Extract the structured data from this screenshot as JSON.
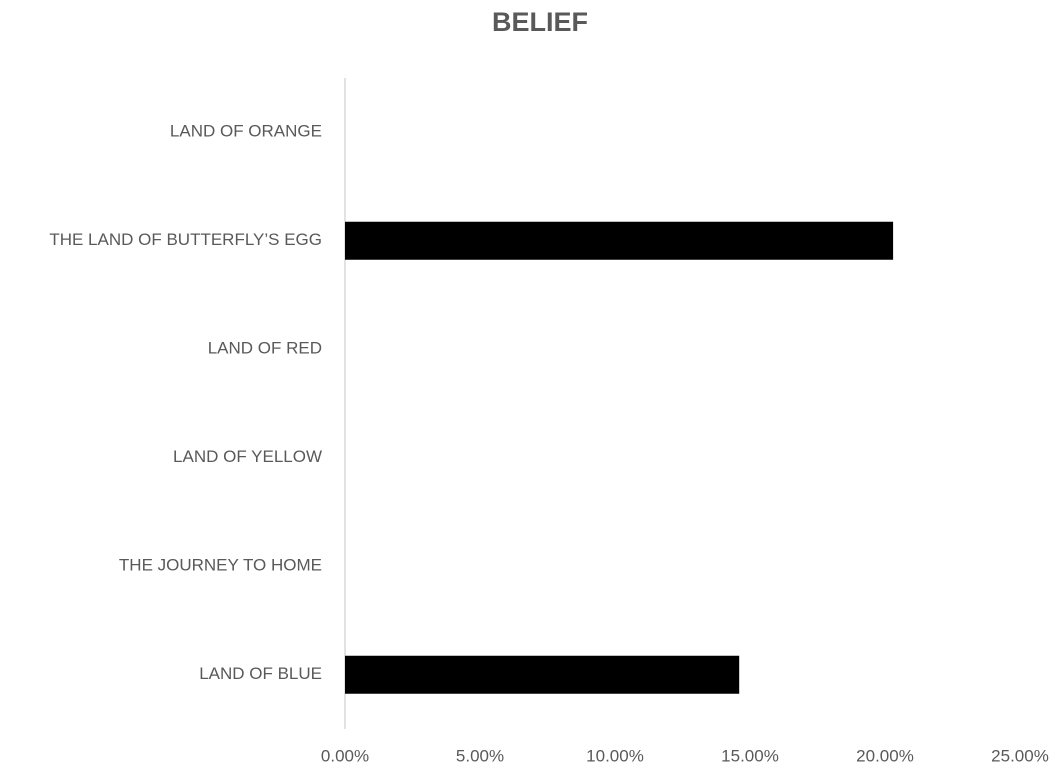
{
  "chart_data": {
    "type": "barh",
    "title": "BELIEF",
    "categories": [
      "LAND OF ORANGE",
      "THE LAND OF BUTTERFLY’S EGG",
      "LAND OF RED",
      "LAND OF YELLOW",
      "THE JOURNEY TO HOME",
      "LAND OF BLUE"
    ],
    "values": [
      0,
      20.3,
      0,
      0,
      0,
      14.6
    ],
    "color": "#000000",
    "xlim": [
      0,
      25
    ],
    "xticks": [
      {
        "value": 0,
        "label": "0.00%"
      },
      {
        "value": 5,
        "label": "5.00%"
      },
      {
        "value": 10,
        "label": "10.00%"
      },
      {
        "value": 15,
        "label": "15.00%"
      },
      {
        "value": 20,
        "label": "20.00%"
      },
      {
        "value": 25,
        "label": "25.00%"
      }
    ],
    "grid": false
  }
}
